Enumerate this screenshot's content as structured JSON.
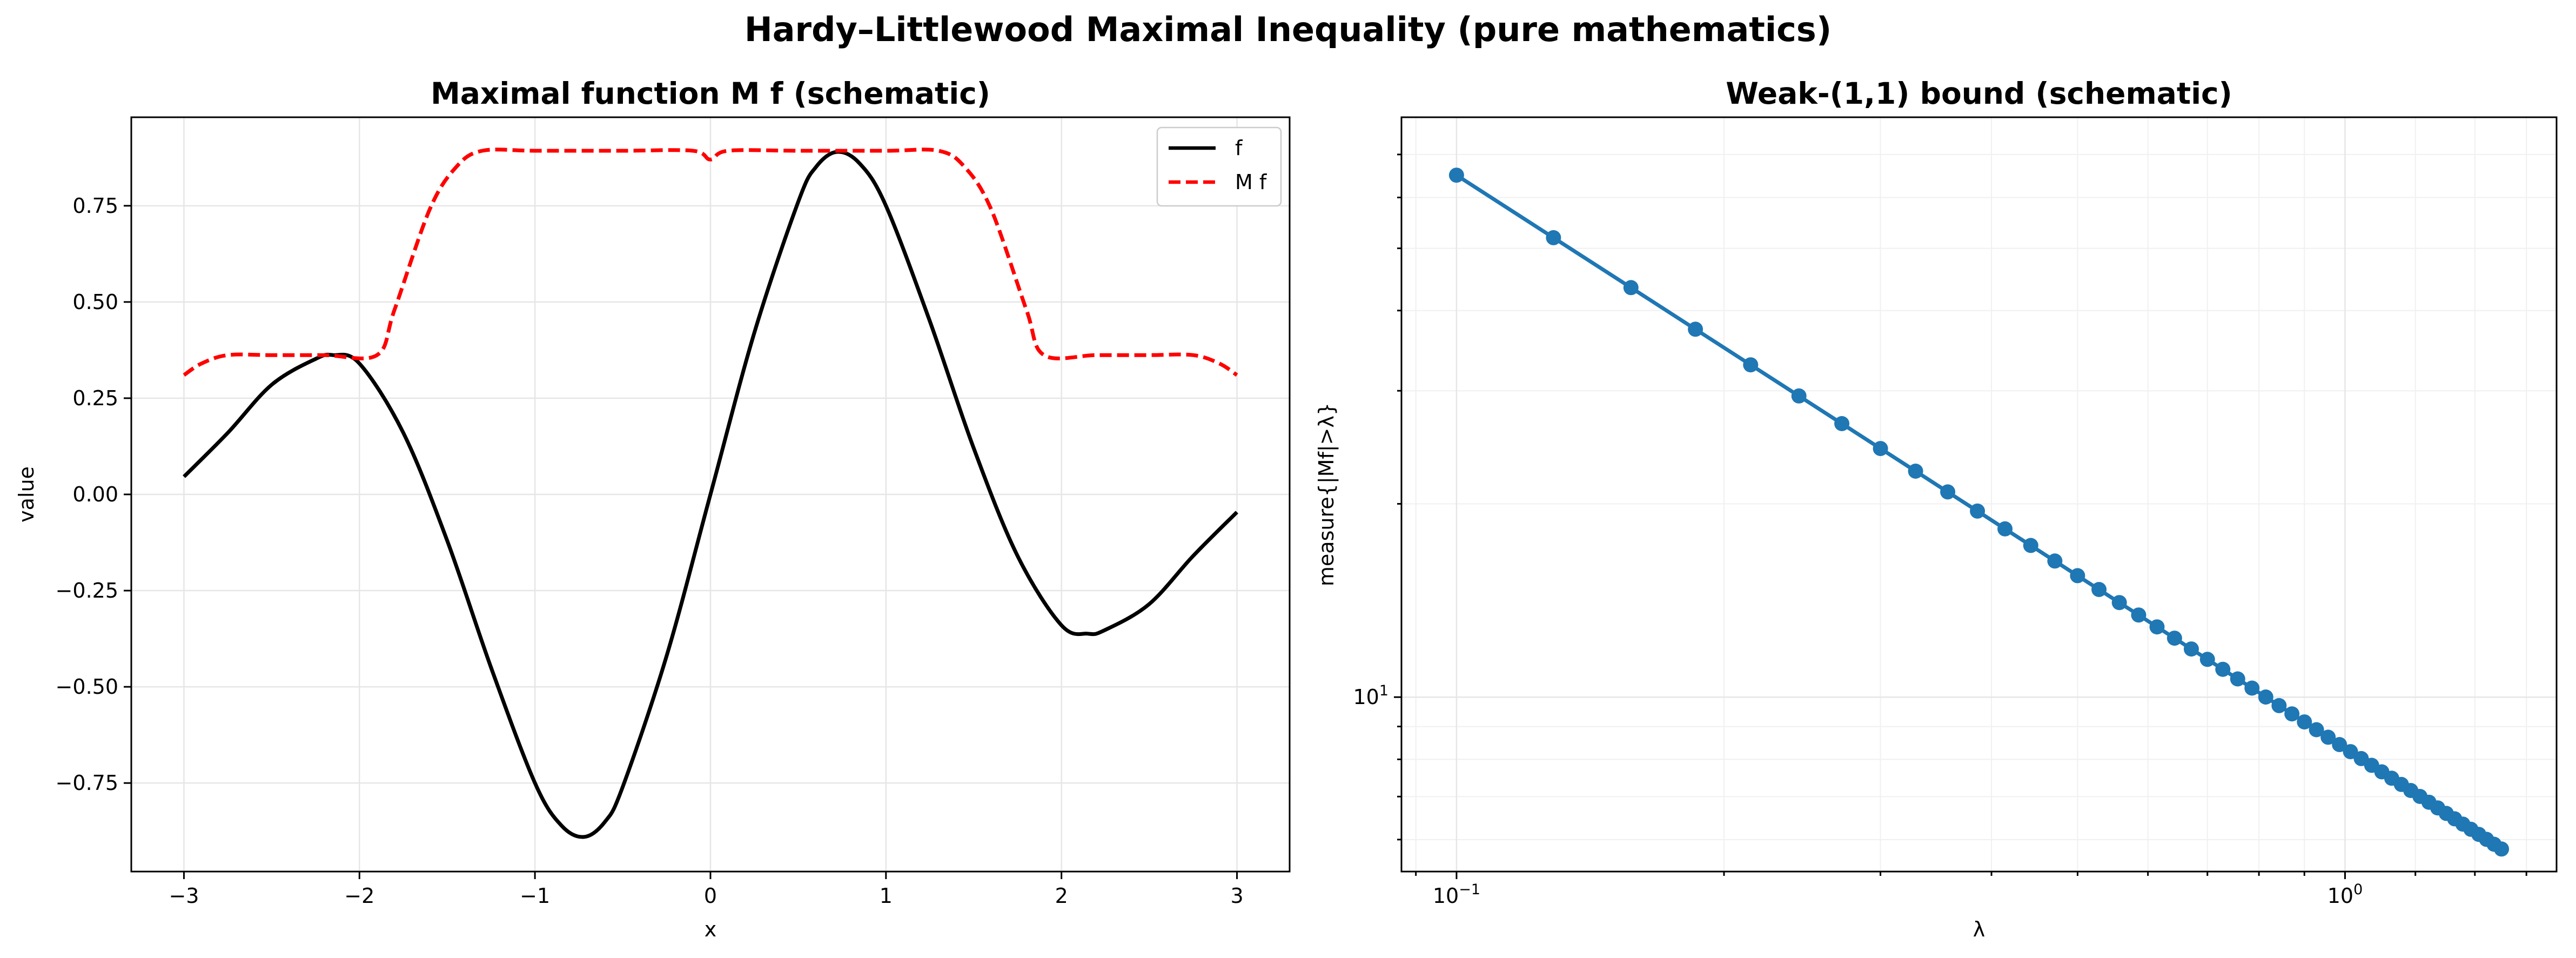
{
  "suptitle": "Hardy–Littlewood Maximal Inequality (pure mathematics)",
  "chart_data": [
    {
      "type": "line",
      "title": "Maximal function M f (schematic)",
      "xlabel": "x",
      "ylabel": "value",
      "xlim": [
        -3.3,
        3.3
      ],
      "ylim": [
        -0.98,
        0.98
      ],
      "xticks": [
        -3,
        -2,
        -1,
        0,
        1,
        2,
        3
      ],
      "xtick_labels": [
        "−3",
        "−2",
        "−1",
        "0",
        "1",
        "2",
        "3"
      ],
      "yticks": [
        -0.75,
        -0.5,
        -0.25,
        0.0,
        0.25,
        0.5,
        0.75
      ],
      "ytick_labels": [
        "−0.75",
        "−0.50",
        "−0.25",
        "0.00",
        "0.25",
        "0.50",
        "0.75"
      ],
      "grid": true,
      "legend": "top-right",
      "series": [
        {
          "name": "f",
          "color": "#000000",
          "style": "solid",
          "x": [
            -3.0,
            -2.75,
            -2.5,
            -2.25,
            -2.15,
            -2.0,
            -1.75,
            -1.5,
            -1.25,
            -1.0,
            -0.85,
            -0.72,
            -0.6,
            -0.5,
            -0.25,
            0.0,
            0.25,
            0.5,
            0.6,
            0.72,
            0.85,
            1.0,
            1.25,
            1.5,
            1.75,
            2.0,
            2.15,
            2.25,
            2.5,
            2.75,
            3.0
          ],
          "values": [
            0.046,
            0.16,
            0.285,
            0.352,
            0.362,
            0.34,
            0.16,
            -0.12,
            -0.45,
            -0.75,
            -0.86,
            -0.89,
            -0.85,
            -0.76,
            -0.42,
            0.0,
            0.42,
            0.76,
            0.85,
            0.89,
            0.86,
            0.75,
            0.45,
            0.12,
            -0.16,
            -0.34,
            -0.362,
            -0.352,
            -0.285,
            -0.16,
            -0.046
          ]
        },
        {
          "name": "M f",
          "color": "#ff0000",
          "style": "dashed",
          "x": [
            -3.0,
            -2.9,
            -2.75,
            -2.5,
            -2.2,
            -1.9,
            -1.8,
            -1.6,
            -1.45,
            -1.3,
            -1.0,
            -0.5,
            -0.1,
            0.0,
            0.1,
            0.5,
            1.0,
            1.3,
            1.45,
            1.6,
            1.8,
            1.9,
            2.2,
            2.5,
            2.75,
            2.9,
            3.0
          ],
          "values": [
            0.31,
            0.34,
            0.362,
            0.362,
            0.362,
            0.362,
            0.48,
            0.74,
            0.85,
            0.893,
            0.893,
            0.893,
            0.893,
            0.87,
            0.893,
            0.893,
            0.893,
            0.893,
            0.85,
            0.74,
            0.48,
            0.362,
            0.362,
            0.362,
            0.362,
            0.34,
            0.31
          ]
        }
      ]
    },
    {
      "type": "line",
      "title": "Weak-(1,1) bound (schematic)",
      "xlabel": "λ",
      "ylabel": "measure{|Mf|>λ}",
      "xscale": "log",
      "yscale": "log",
      "xlim": [
        0.0867,
        1.73
      ],
      "ylim": [
        5.35,
        80
      ],
      "xticks": [
        0.1,
        1.0
      ],
      "xtick_labels": [
        "10",
        "10"
      ],
      "xtick_exponents": [
        "−1",
        "0"
      ],
      "yticks": [
        10
      ],
      "ytick_labels": [
        "10"
      ],
      "ytick_exponents": [
        "1"
      ],
      "grid": true,
      "marker": "circle",
      "color": "#1f77b4",
      "series": [
        {
          "name": "",
          "x_start": 0.1,
          "x_end": 1.5,
          "count": 50,
          "y_at_x_start": 65,
          "y_at_x_end": 5.8
        }
      ]
    }
  ]
}
